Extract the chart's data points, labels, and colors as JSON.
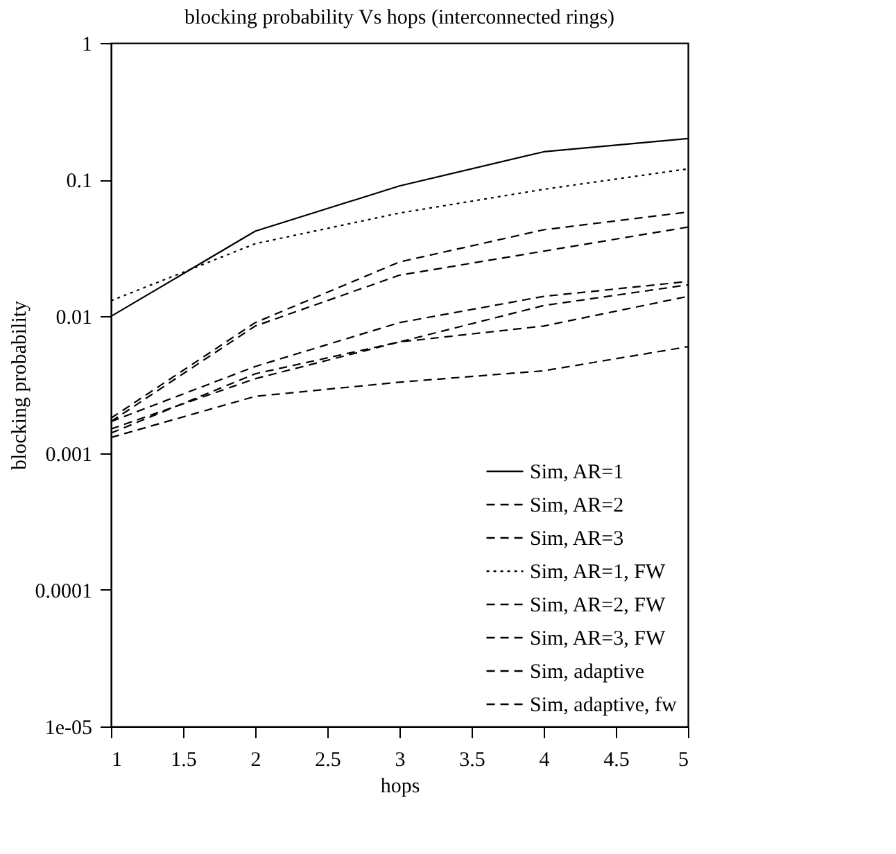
{
  "chart_data": {
    "type": "line",
    "title": "blocking probability Vs hops (interconnected rings)",
    "xlabel": "hops",
    "ylabel": "blocking probability",
    "x": [
      1,
      2,
      3,
      4,
      5
    ],
    "log": "y",
    "xlim": [
      1,
      5
    ],
    "xticks": [
      1,
      1.5,
      2,
      2.5,
      3,
      3.5,
      4,
      4.5,
      5
    ],
    "ylim": [
      1e-05,
      1
    ],
    "yticks": [
      1,
      0.1,
      0.01,
      0.001,
      0.0001,
      {
        "value": 1e-05,
        "label": "1e-05"
      }
    ],
    "grid": false,
    "legend": "bottom right",
    "marker": "none",
    "series": [
      {
        "name": "Sim, AR=1",
        "color": "#000000",
        "line_style": "solid",
        "values": [
          0.01,
          0.042,
          0.09,
          0.16,
          0.2
        ]
      },
      {
        "name": "Sim, AR=2",
        "color": "#000000",
        "line_style": "dashed",
        "values": [
          0.0018,
          0.009,
          0.025,
          0.043,
          0.058
        ]
      },
      {
        "name": "Sim, AR=3",
        "color": "#000000",
        "line_style": "dashed",
        "values": [
          0.0017,
          0.0085,
          0.02,
          0.03,
          0.045
        ]
      },
      {
        "name": "Sim, AR=1, FW",
        "color": "#000000",
        "line_style": "dotted",
        "values": [
          0.013,
          0.034,
          0.057,
          0.085,
          0.12
        ]
      },
      {
        "name": "Sim, AR=2, FW",
        "color": "#000000",
        "line_style": "dashed",
        "values": [
          0.0017,
          0.0043,
          0.009,
          0.014,
          0.018
        ]
      },
      {
        "name": "Sim, AR=3, FW",
        "color": "#000000",
        "line_style": "dashed",
        "values": [
          0.0015,
          0.0035,
          0.0065,
          0.0085,
          0.014
        ]
      },
      {
        "name": "Sim, adaptive",
        "color": "#000000",
        "line_style": "dashed",
        "values": [
          0.0014,
          0.0038,
          0.0065,
          0.012,
          0.017
        ]
      },
      {
        "name": "Sim, adaptive, fw",
        "color": "#000000",
        "line_style": "dashed",
        "values": [
          0.0013,
          0.0026,
          0.0033,
          0.004,
          0.006
        ]
      }
    ]
  }
}
